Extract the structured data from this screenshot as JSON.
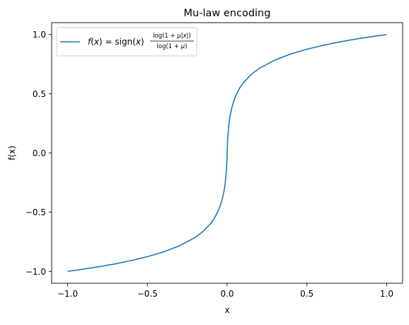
{
  "chart_data": {
    "type": "line",
    "title": "Mu-law encoding",
    "xlabel": "x",
    "ylabel": "f(x)",
    "xlim": [
      -1.1,
      1.1
    ],
    "ylim": [
      -1.1,
      1.1
    ],
    "xticks": [
      -1.0,
      -0.5,
      0.0,
      0.5,
      1.0
    ],
    "xtick_labels": [
      "−1.0",
      "−0.5",
      "0.0",
      "0.5",
      "1.0"
    ],
    "yticks": [
      -1.0,
      -0.5,
      0.0,
      0.5,
      1.0
    ],
    "ytick_labels": [
      "−1.0",
      "−0.5",
      "0.0",
      "0.5",
      "1.0"
    ],
    "grid": false,
    "legend_position": "upper-left",
    "series": [
      {
        "name": "f(x) = sign(x) log(1 + μ|x|) / log(1 + μ)",
        "color": "#1f77b4",
        "x": [
          -1.0,
          -0.9,
          -0.8,
          -0.7,
          -0.6,
          -0.5,
          -0.4,
          -0.3,
          -0.2,
          -0.15,
          -0.1,
          -0.08,
          -0.06,
          -0.05,
          -0.04,
          -0.03,
          -0.02,
          -0.015,
          -0.01,
          -0.007,
          -0.005,
          -0.003,
          -0.002,
          -0.001,
          0.0,
          0.001,
          0.002,
          0.003,
          0.005,
          0.007,
          0.01,
          0.015,
          0.02,
          0.03,
          0.04,
          0.05,
          0.06,
          0.08,
          0.1,
          0.15,
          0.2,
          0.3,
          0.4,
          0.5,
          0.6,
          0.7,
          0.8,
          0.9,
          1.0
        ],
        "y": [
          -1.0,
          -0.981,
          -0.96,
          -0.936,
          -0.908,
          -0.876,
          -0.836,
          -0.785,
          -0.713,
          -0.662,
          -0.591,
          -0.551,
          -0.5,
          -0.469,
          -0.431,
          -0.385,
          -0.325,
          -0.284,
          -0.229,
          -0.186,
          -0.151,
          -0.105,
          -0.076,
          -0.042,
          0.0,
          0.042,
          0.076,
          0.105,
          0.151,
          0.186,
          0.229,
          0.284,
          0.325,
          0.385,
          0.431,
          0.469,
          0.5,
          0.551,
          0.591,
          0.662,
          0.713,
          0.785,
          0.836,
          0.876,
          0.908,
          0.936,
          0.96,
          0.981,
          1.0
        ]
      }
    ]
  }
}
